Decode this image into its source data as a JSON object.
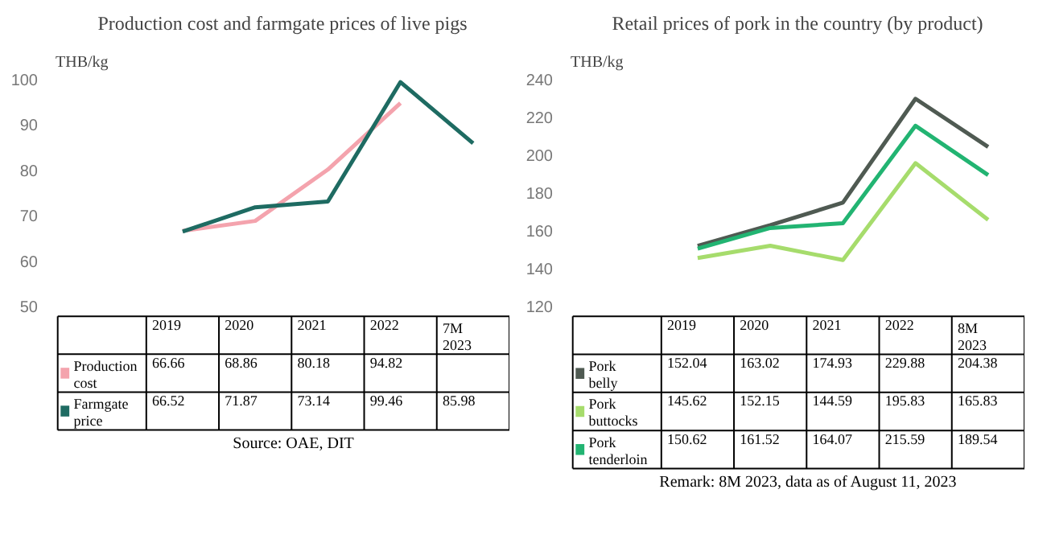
{
  "chart_data": [
    {
      "type": "line",
      "title": "Production cost and farmgate prices of live pigs",
      "ylabel": "THB/kg",
      "categories": [
        "2019",
        "2020",
        "2021",
        "2022",
        "7M 2023"
      ],
      "ylim": [
        50,
        100
      ],
      "yticks": [
        50,
        60,
        70,
        80,
        90,
        100
      ],
      "tick_labels": "y",
      "grid": false,
      "legend": "bottom",
      "data_labels": true,
      "series": [
        {
          "name": "Production cost",
          "color": "#f4a3ad",
          "values": [
            66.66,
            68.86,
            80.18,
            94.82,
            null
          ]
        },
        {
          "name": "Farmgate price",
          "color": "#1e6b62",
          "values": [
            66.52,
            71.87,
            73.14,
            99.46,
            85.98
          ]
        }
      ],
      "annotations": [
        "Source: OAE, DIT"
      ]
    },
    {
      "type": "line",
      "title": "Retail prices of pork in the country (by product)",
      "ylabel": "THB/kg",
      "categories": [
        "2019",
        "2020",
        "2021",
        "2022",
        "8M 2023"
      ],
      "ylim": [
        120,
        240
      ],
      "yticks": [
        120,
        140,
        160,
        180,
        200,
        220,
        240
      ],
      "tick_labels": "y",
      "grid": false,
      "legend": "bottom",
      "data_labels": true,
      "series": [
        {
          "name": "Pork belly",
          "color": "#4f5a52",
          "values": [
            152.04,
            163.02,
            174.93,
            229.88,
            204.38
          ]
        },
        {
          "name": "Pork buttocks",
          "color": "#a6dc6c",
          "values": [
            145.62,
            152.15,
            144.59,
            195.83,
            165.83
          ]
        },
        {
          "name": "Pork tenderloin",
          "color": "#22b472",
          "values": [
            150.62,
            161.52,
            164.07,
            215.59,
            189.54
          ]
        }
      ],
      "annotations": [
        "Remark: 8M 2023, data as of August 11, 2023"
      ]
    }
  ]
}
